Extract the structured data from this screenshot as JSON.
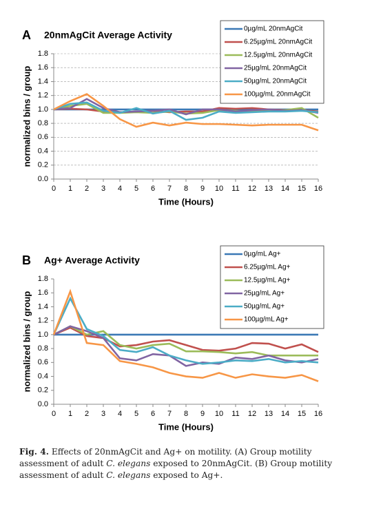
{
  "chart_data": [
    {
      "type": "line",
      "panel": "A",
      "title": "20nmAgCit Average Activity",
      "x_label": "Time (Hours)",
      "y_label": "normalized bins / group",
      "x": [
        0,
        1,
        2,
        3,
        4,
        5,
        6,
        7,
        8,
        9,
        10,
        11,
        12,
        13,
        14,
        15,
        16
      ],
      "xlim": [
        0,
        16
      ],
      "xticks": [
        0,
        1,
        2,
        3,
        4,
        5,
        6,
        7,
        8,
        9,
        10,
        11,
        12,
        13,
        14,
        15,
        16
      ],
      "ylim": [
        0,
        1.8
      ],
      "yticks": [
        {
          "value": 0,
          "label": "0.0"
        },
        0.2,
        0.4,
        0.6,
        0.8,
        {
          "value": 1,
          "label": "1.0"
        },
        1.2,
        1.4,
        1.6,
        1.8
      ],
      "grid": true,
      "legend": "upper right",
      "series": [
        {
          "name": "0µg/mL 20nmAgCit",
          "color": "#3a78b5",
          "values": [
            1,
            1,
            1,
            1,
            1,
            1,
            1,
            1,
            1,
            1,
            1,
            1,
            1,
            1,
            1,
            1,
            1
          ]
        },
        {
          "name": "6.25µg/mL 20nmAgCit",
          "color": "#c0504d",
          "values": [
            1,
            1.01,
            1.0,
            0.97,
            0.96,
            0.97,
            0.98,
            0.96,
            0.97,
            0.97,
            1.02,
            1.01,
            1.02,
            1.0,
            0.99,
            0.99,
            0.97
          ]
        },
        {
          "name": "12.5µg/mL 20nmAgCit",
          "color": "#9bbb59",
          "values": [
            1,
            1.05,
            1.08,
            0.95,
            0.95,
            0.96,
            0.95,
            0.97,
            0.94,
            0.95,
            0.99,
            0.98,
            0.97,
            0.98,
            0.99,
            1.02,
            0.88
          ]
        },
        {
          "name": "25µg/mL 20nmAgCit",
          "color": "#8064a2",
          "values": [
            1,
            1.02,
            1.15,
            1.02,
            0.96,
            0.97,
            0.98,
            1.0,
            0.93,
            1.0,
            1.0,
            0.97,
            0.99,
            1.0,
            0.98,
            0.99,
            0.95
          ]
        },
        {
          "name": "50µg/mL 20nmAgCit",
          "color": "#4bacc6",
          "values": [
            1,
            1.08,
            1.1,
            0.98,
            0.95,
            1.02,
            0.94,
            0.98,
            0.85,
            0.88,
            0.97,
            0.95,
            0.96,
            0.97,
            0.97,
            0.98,
            0.96
          ]
        },
        {
          "name": "100µg/mL 20nmAgCit",
          "color": "#f79646",
          "values": [
            1,
            1.12,
            1.22,
            1.05,
            0.86,
            0.75,
            0.81,
            0.77,
            0.81,
            0.79,
            0.79,
            0.78,
            0.77,
            0.78,
            0.78,
            0.78,
            0.7
          ]
        }
      ]
    },
    {
      "type": "line",
      "panel": "B",
      "title": "Ag+ Average Activity",
      "x_label": "Time (Hours)",
      "y_label": "normalized bins / group",
      "x": [
        0,
        1,
        2,
        3,
        4,
        5,
        6,
        7,
        8,
        9,
        10,
        11,
        12,
        13,
        14,
        15,
        16
      ],
      "xlim": [
        0,
        16
      ],
      "xticks": [
        0,
        1,
        2,
        3,
        4,
        5,
        6,
        7,
        8,
        9,
        10,
        11,
        12,
        13,
        14,
        15,
        16
      ],
      "ylim": [
        0,
        1.8
      ],
      "yticks": [
        {
          "value": 0,
          "label": "0.0"
        },
        0.2,
        0.4,
        0.6,
        0.8,
        {
          "value": 1,
          "label": "1.0"
        },
        1.2,
        1.4,
        1.6,
        1.8
      ],
      "grid": false,
      "legend": "upper right",
      "series": [
        {
          "name": "0µg/mL Ag+",
          "color": "#3a78b5",
          "values": [
            1,
            1,
            1,
            1,
            1,
            1,
            1,
            1,
            1,
            1,
            1,
            1,
            1,
            1,
            1,
            1,
            1
          ]
        },
        {
          "name": "6.25µg/mL Ag+",
          "color": "#c0504d",
          "values": [
            1,
            1.1,
            0.98,
            0.95,
            0.83,
            0.85,
            0.9,
            0.92,
            0.85,
            0.78,
            0.77,
            0.8,
            0.88,
            0.87,
            0.8,
            0.86,
            0.75
          ]
        },
        {
          "name": "12.5µg/mL Ag+",
          "color": "#9bbb59",
          "values": [
            1,
            1.12,
            1.0,
            1.05,
            0.85,
            0.8,
            0.85,
            0.87,
            0.76,
            0.76,
            0.75,
            0.73,
            0.75,
            0.7,
            0.7,
            0.7,
            0.7
          ]
        },
        {
          "name": "25µg/mL Ag+",
          "color": "#8064a2",
          "values": [
            1,
            1.12,
            1.05,
            0.95,
            0.66,
            0.63,
            0.72,
            0.7,
            0.55,
            0.6,
            0.58,
            0.67,
            0.65,
            0.7,
            0.63,
            0.6,
            0.65
          ]
        },
        {
          "name": "50µg/mL Ag+",
          "color": "#4bacc6",
          "values": [
            1,
            1.52,
            1.08,
            0.98,
            0.78,
            0.75,
            0.82,
            0.7,
            0.63,
            0.58,
            0.6,
            0.63,
            0.62,
            0.65,
            0.6,
            0.62,
            0.6
          ]
        },
        {
          "name": "100µg/mL Ag+",
          "color": "#f79646",
          "values": [
            1,
            1.62,
            0.88,
            0.85,
            0.62,
            0.58,
            0.53,
            0.45,
            0.4,
            0.38,
            0.45,
            0.38,
            0.43,
            0.4,
            0.38,
            0.42,
            0.33
          ]
        }
      ]
    }
  ],
  "caption": {
    "label": "Fig. 4.",
    "parts": [
      " Effects of 20nmAgCit and Ag+ on motility. (A) Group motility assessment of adult ",
      "C. elegans",
      " exposed to 20nmAgCit. (B) Group motility assessment of adult ",
      "C. elegans",
      " exposed to Ag+."
    ]
  }
}
